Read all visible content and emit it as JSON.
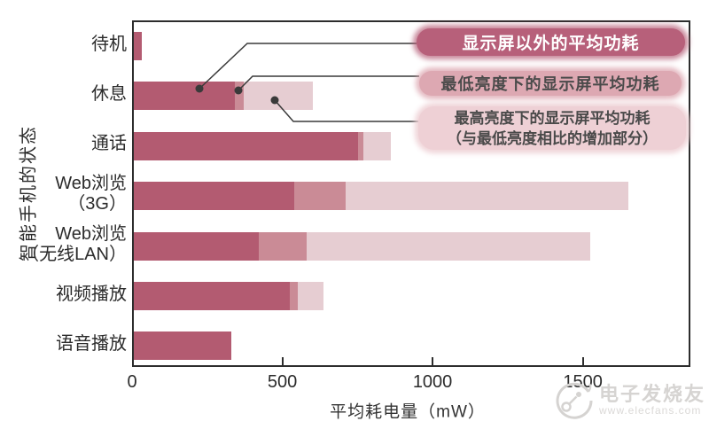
{
  "chart_data": {
    "type": "bar",
    "orientation": "horizontal",
    "stacked": true,
    "title": "",
    "xlabel": "平均耗电量（mW）",
    "ylabel": "智能手机的状态",
    "categories": [
      "待机",
      "休息",
      "通话",
      "Web浏览（3G）",
      "Web浏览（无线LAN）",
      "视频播放",
      "语音播放"
    ],
    "categories_lines": [
      [
        "待机"
      ],
      [
        "休息"
      ],
      [
        "通话"
      ],
      [
        "Web浏览",
        "（3G）"
      ],
      [
        "Web浏览",
        "（无线LAN）"
      ],
      [
        "视频播放"
      ],
      [
        "语音播放"
      ]
    ],
    "series": [
      {
        "name": "显示屏以外的平均功耗",
        "color": "#b35b71",
        "values": [
          27,
          335,
          745,
          535,
          415,
          520,
          325
        ]
      },
      {
        "name": "最低亮度下的显示屏平均功耗",
        "color": "#ca8b96",
        "values": [
          0,
          30,
          20,
          170,
          160,
          25,
          0
        ]
      },
      {
        "name": "最高亮度下的显示屏平均功耗（与最低亮度相比的增加部分）",
        "color": "#e6cdd2",
        "values": [
          0,
          230,
          90,
          940,
          945,
          85,
          0
        ]
      }
    ],
    "xlim": [
      0,
      1858
    ],
    "xticks": [
      0,
      500,
      1000,
      1500
    ],
    "grid": false,
    "legend_position": "annotation-badges-top-right"
  },
  "annotations": {
    "other": {
      "text": "显示屏以外的平均功耗",
      "bg": "#b7607a",
      "text_color": "#ffffff"
    },
    "min_brightness": {
      "text": "最低亮度下的显示屏平均功耗",
      "bg": "#dda8b2",
      "text_color": "#4a4a4a"
    },
    "max_brightness": {
      "line1": "最高亮度下的显示屏平均功耗",
      "line2": "（与最低亮度相比的增加部分）",
      "bg": "#eed0d5",
      "text_color": "#4a4a4a"
    }
  },
  "watermark": {
    "brand": "电子发烧友",
    "url": "www.elecfans.com"
  }
}
